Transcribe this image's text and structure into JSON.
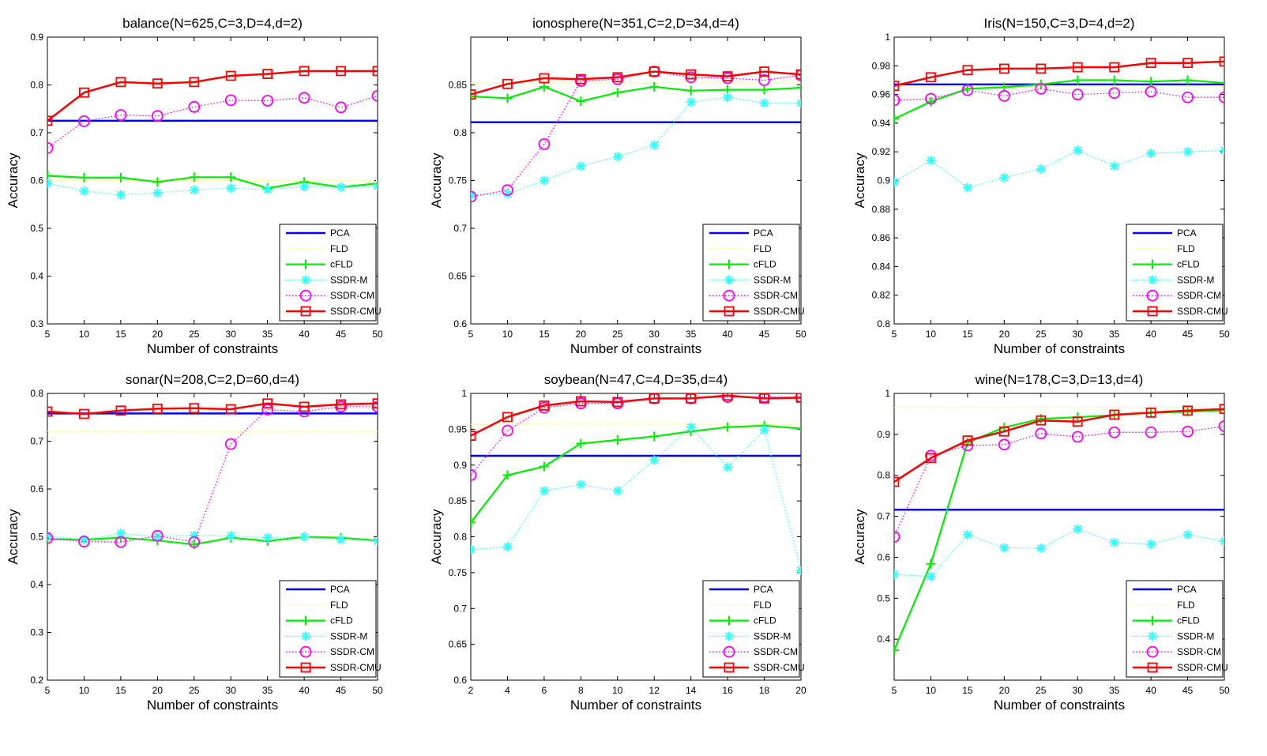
{
  "legend_labels": [
    "PCA",
    "FLD",
    "cFLD",
    "SSDR-M",
    "SSDR-CM",
    "SSDR-CMU"
  ],
  "series_colors": {
    "PCA": "#0000ff",
    "FLD": "#ffff66",
    "cFLD": "#00ee00",
    "SSDR-M": "#33ffff",
    "SSDR-CM": "#ff00ff",
    "SSDR-CMU": "#ff0000"
  },
  "chart_data": [
    {
      "type": "line",
      "title": "balance(N=625,C=3,D=4,d=2)",
      "xlabel": "Number of constraints",
      "ylabel": "Accuracy",
      "xlim": [
        5,
        50
      ],
      "ylim": [
        0.3,
        0.9
      ],
      "xticks": [
        "5",
        "10",
        "15",
        "20",
        "25",
        "30",
        "35",
        "40",
        "45",
        "50"
      ],
      "yticks": [
        "0.3",
        "0.4",
        "0.5",
        "0.6",
        "0.7",
        "0.8",
        "0.9"
      ],
      "legend_position": "bottom-right",
      "x": [
        5,
        10,
        15,
        20,
        25,
        30,
        35,
        40,
        45,
        50
      ],
      "series": [
        {
          "name": "PCA",
          "values": [
            0.725,
            0.725,
            0.725,
            0.725,
            0.725,
            0.725,
            0.725,
            0.725,
            0.725,
            0.725
          ]
        },
        {
          "name": "FLD",
          "values": [
            0.6,
            0.6,
            0.6,
            0.6,
            0.6,
            0.6,
            0.6,
            0.6,
            0.6,
            0.6
          ]
        },
        {
          "name": "cFLD",
          "values": [
            0.61,
            0.606,
            0.606,
            0.597,
            0.607,
            0.607,
            0.584,
            0.597,
            0.586,
            0.594
          ]
        },
        {
          "name": "SSDR-M",
          "values": [
            0.594,
            0.578,
            0.57,
            0.574,
            0.58,
            0.584,
            0.581,
            0.587,
            0.586,
            0.588
          ]
        },
        {
          "name": "SSDR-CM",
          "values": [
            0.668,
            0.724,
            0.737,
            0.735,
            0.754,
            0.768,
            0.767,
            0.773,
            0.753,
            0.777
          ]
        },
        {
          "name": "SSDR-CMU",
          "values": [
            0.725,
            0.784,
            0.806,
            0.803,
            0.806,
            0.819,
            0.823,
            0.829,
            0.829,
            0.829
          ]
        }
      ]
    },
    {
      "type": "line",
      "title": "ionosphere(N=351,C=2,D=34,d=4)",
      "xlabel": "Number of constraints",
      "ylabel": "Accuracy",
      "xlim": [
        5,
        50
      ],
      "ylim": [
        0.6,
        0.9
      ],
      "xticks": [
        "5",
        "10",
        "15",
        "20",
        "25",
        "30",
        "35",
        "40",
        "45",
        "50"
      ],
      "yticks": [
        "0.6",
        "0.65",
        "0.7",
        "0.75",
        "0.8",
        "0.85"
      ],
      "legend_position": "bottom-right",
      "x": [
        5,
        10,
        15,
        20,
        25,
        30,
        35,
        40,
        45,
        50
      ],
      "series": [
        {
          "name": "PCA",
          "values": [
            0.811,
            0.811,
            0.811,
            0.811,
            0.811,
            0.811,
            0.811,
            0.811,
            0.811,
            0.811
          ]
        },
        {
          "name": "FLD",
          "values": [
            0.852,
            0.852,
            0.852,
            0.852,
            0.852,
            0.852,
            0.852,
            0.852,
            0.852,
            0.852
          ]
        },
        {
          "name": "cFLD",
          "values": [
            0.838,
            0.836,
            0.848,
            0.833,
            0.842,
            0.848,
            0.844,
            0.845,
            0.845,
            0.847
          ]
        },
        {
          "name": "SSDR-M",
          "values": [
            0.735,
            0.736,
            0.75,
            0.765,
            0.775,
            0.787,
            0.832,
            0.837,
            0.831,
            0.831
          ]
        },
        {
          "name": "SSDR-CM",
          "values": [
            0.733,
            0.74,
            0.788,
            0.854,
            0.856,
            0.864,
            0.858,
            0.857,
            0.855,
            0.86
          ]
        },
        {
          "name": "SSDR-CMU",
          "values": [
            0.84,
            0.851,
            0.857,
            0.856,
            0.858,
            0.864,
            0.861,
            0.859,
            0.864,
            0.861
          ]
        }
      ]
    },
    {
      "type": "line",
      "title": "Iris(N=150,C=3,D=4,d=2)",
      "xlabel": "Number of constraints",
      "ylabel": "Accuracy",
      "xlim": [
        5,
        50
      ],
      "ylim": [
        0.8,
        1.0
      ],
      "xticks": [
        "5",
        "10",
        "15",
        "20",
        "25",
        "30",
        "35",
        "40",
        "45",
        "50"
      ],
      "yticks": [
        "0.8",
        "0.82",
        "0.84",
        "0.86",
        "0.88",
        "0.9",
        "0.92",
        "0.94",
        "0.96",
        "0.98",
        "1"
      ],
      "legend_position": "bottom-right",
      "x": [
        5,
        10,
        15,
        20,
        25,
        30,
        35,
        40,
        45,
        50
      ],
      "series": [
        {
          "name": "PCA",
          "values": [
            0.967,
            0.967,
            0.967,
            0.967,
            0.967,
            0.967,
            0.967,
            0.967,
            0.967,
            0.967
          ]
        },
        {
          "name": "FLD",
          "values": [
            0.966,
            0.966,
            0.966,
            0.966,
            0.966,
            0.966,
            0.966,
            0.966,
            0.966,
            0.966
          ]
        },
        {
          "name": "cFLD",
          "values": [
            0.943,
            0.955,
            0.964,
            0.965,
            0.967,
            0.97,
            0.97,
            0.969,
            0.97,
            0.968
          ]
        },
        {
          "name": "SSDR-M",
          "values": [
            0.899,
            0.914,
            0.895,
            0.902,
            0.908,
            0.921,
            0.91,
            0.919,
            0.92,
            0.921
          ]
        },
        {
          "name": "SSDR-CM",
          "values": [
            0.956,
            0.957,
            0.963,
            0.959,
            0.964,
            0.96,
            0.961,
            0.962,
            0.958,
            0.958
          ]
        },
        {
          "name": "SSDR-CMU",
          "values": [
            0.966,
            0.972,
            0.977,
            0.978,
            0.978,
            0.979,
            0.979,
            0.982,
            0.982,
            0.983
          ]
        }
      ]
    },
    {
      "type": "line",
      "title": "sonar(N=208,C=2,D=60,d=4)",
      "xlabel": "Number of constraints",
      "ylabel": "Accuracy",
      "xlim": [
        5,
        50
      ],
      "ylim": [
        0.2,
        0.8
      ],
      "xticks": [
        "5",
        "10",
        "15",
        "20",
        "25",
        "30",
        "35",
        "40",
        "45",
        "50"
      ],
      "yticks": [
        "0.2",
        "0.3",
        "0.4",
        "0.5",
        "0.6",
        "0.7",
        "0.8"
      ],
      "legend_position": "bottom-right",
      "x": [
        5,
        10,
        15,
        20,
        25,
        30,
        35,
        40,
        45,
        50
      ],
      "series": [
        {
          "name": "PCA",
          "values": [
            0.758,
            0.758,
            0.758,
            0.758,
            0.758,
            0.758,
            0.758,
            0.758,
            0.758,
            0.758
          ]
        },
        {
          "name": "FLD",
          "values": [
            0.72,
            0.72,
            0.72,
            0.72,
            0.72,
            0.72,
            0.72,
            0.72,
            0.72,
            0.72
          ]
        },
        {
          "name": "cFLD",
          "values": [
            0.495,
            0.494,
            0.498,
            0.492,
            0.484,
            0.498,
            0.491,
            0.5,
            0.498,
            0.492
          ]
        },
        {
          "name": "SSDR-M",
          "values": [
            0.501,
            0.494,
            0.507,
            0.5,
            0.503,
            0.502,
            0.498,
            0.5,
            0.494,
            0.491
          ]
        },
        {
          "name": "SSDR-CM",
          "values": [
            0.497,
            0.49,
            0.489,
            0.502,
            0.489,
            0.694,
            0.766,
            0.762,
            0.772,
            0.772
          ]
        },
        {
          "name": "SSDR-CMU",
          "values": [
            0.762,
            0.757,
            0.764,
            0.768,
            0.769,
            0.767,
            0.779,
            0.772,
            0.777,
            0.779
          ]
        }
      ]
    },
    {
      "type": "line",
      "title": "soybean(N=47,C=4,D=35,d=4)",
      "xlabel": "Number of constraints",
      "ylabel": "Accuracy",
      "xlim": [
        2,
        20
      ],
      "ylim": [
        0.6,
        1.0
      ],
      "xticks": [
        "2",
        "4",
        "6",
        "8",
        "10",
        "12",
        "14",
        "16",
        "18",
        "20"
      ],
      "yticks": [
        "0.6",
        "0.65",
        "0.7",
        "0.75",
        "0.8",
        "0.85",
        "0.9",
        "0.95",
        "1"
      ],
      "legend_position": "bottom-right",
      "x": [
        2,
        4,
        6,
        8,
        10,
        12,
        14,
        16,
        18,
        20
      ],
      "series": [
        {
          "name": "PCA",
          "values": [
            0.913,
            0.913,
            0.913,
            0.913,
            0.913,
            0.913,
            0.913,
            0.913,
            0.913,
            0.913
          ]
        },
        {
          "name": "FLD",
          "values": [
            0.957,
            0.957,
            0.957,
            0.957,
            0.957,
            0.957,
            0.957,
            0.957,
            0.957,
            0.957
          ]
        },
        {
          "name": "cFLD",
          "values": [
            0.82,
            0.886,
            0.898,
            0.93,
            0.935,
            0.94,
            0.947,
            0.953,
            0.955,
            0.951
          ]
        },
        {
          "name": "SSDR-M",
          "values": [
            0.782,
            0.786,
            0.864,
            0.873,
            0.864,
            0.907,
            0.953,
            0.897,
            0.949,
            0.753
          ]
        },
        {
          "name": "SSDR-CM",
          "values": [
            0.886,
            0.948,
            0.98,
            0.986,
            0.986,
            0.993,
            0.993,
            0.995,
            0.995,
            0.995
          ]
        },
        {
          "name": "SSDR-CMU",
          "values": [
            0.941,
            0.967,
            0.983,
            0.989,
            0.988,
            0.993,
            0.993,
            0.997,
            0.993,
            0.994
          ]
        }
      ]
    },
    {
      "type": "line",
      "title": "wine(N=178,C=3,D=13,d=4)",
      "xlabel": "Number of constraints",
      "ylabel": "Accuracy",
      "xlim": [
        5,
        50
      ],
      "ylim": [
        0.3,
        1.0
      ],
      "xticks": [
        "5",
        "10",
        "15",
        "20",
        "25",
        "30",
        "35",
        "40",
        "45",
        "50"
      ],
      "yticks": [
        "0.4",
        "0.5",
        "0.6",
        "0.7",
        "0.8",
        "0.9",
        "1"
      ],
      "legend_position": "bottom-right",
      "x": [
        5,
        10,
        15,
        20,
        25,
        30,
        35,
        40,
        45,
        50
      ],
      "series": [
        {
          "name": "PCA",
          "values": [
            0.716,
            0.716,
            0.716,
            0.716,
            0.716,
            0.716,
            0.716,
            0.716,
            0.716,
            0.716
          ]
        },
        {
          "name": "FLD",
          "values": [
            0.966,
            0.966,
            0.966,
            0.966,
            0.966,
            0.966,
            0.966,
            0.966,
            0.966,
            0.966
          ]
        },
        {
          "name": "cFLD",
          "values": [
            0.373,
            0.584,
            0.88,
            0.917,
            0.938,
            0.942,
            0.947,
            0.953,
            0.955,
            0.959
          ]
        },
        {
          "name": "SSDR-M",
          "values": [
            0.558,
            0.553,
            0.655,
            0.623,
            0.622,
            0.669,
            0.636,
            0.632,
            0.655,
            0.639
          ]
        },
        {
          "name": "SSDR-CM",
          "values": [
            0.65,
            0.848,
            0.873,
            0.875,
            0.902,
            0.894,
            0.905,
            0.905,
            0.907,
            0.92
          ]
        },
        {
          "name": "SSDR-CMU",
          "values": [
            0.784,
            0.842,
            0.885,
            0.907,
            0.934,
            0.931,
            0.948,
            0.953,
            0.958,
            0.962
          ]
        }
      ]
    }
  ]
}
